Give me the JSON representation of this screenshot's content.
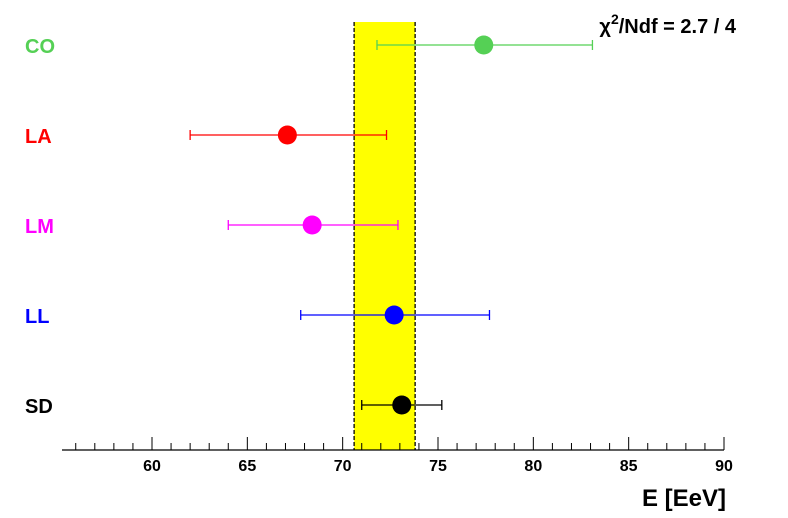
{
  "chart_data": {
    "type": "scatter",
    "title": "",
    "xlabel": "E [EeV]",
    "ylabel": "",
    "xlim": [
      55,
      90
    ],
    "x_ticks": [
      60,
      65,
      70,
      75,
      80,
      85,
      90
    ],
    "x_tick_labels": [
      "60",
      "65",
      "70",
      "75",
      "80",
      "85",
      "90"
    ],
    "grid": false,
    "band": {
      "x_low": 70.6,
      "x_high": 73.8,
      "color": "#ffff00"
    },
    "annotation": {
      "prefix": "χ",
      "sup": "2",
      "suffix": "/Ndf = 2.7 / 4"
    },
    "points": [
      {
        "label": "CO",
        "x": 77.4,
        "x_low": 71.8,
        "x_high": 83.1,
        "color": "#55d055"
      },
      {
        "label": "LA",
        "x": 67.1,
        "x_low": 62.0,
        "x_high": 72.3,
        "color": "#ff0000"
      },
      {
        "label": "LM",
        "x": 68.4,
        "x_low": 64.0,
        "x_high": 72.9,
        "color": "#ff00ff"
      },
      {
        "label": "LL",
        "x": 72.7,
        "x_low": 67.8,
        "x_high": 77.7,
        "color": "#0000ff"
      },
      {
        "label": "SD",
        "x": 73.1,
        "x_low": 71.0,
        "x_high": 75.2,
        "color": "#000000"
      }
    ]
  }
}
